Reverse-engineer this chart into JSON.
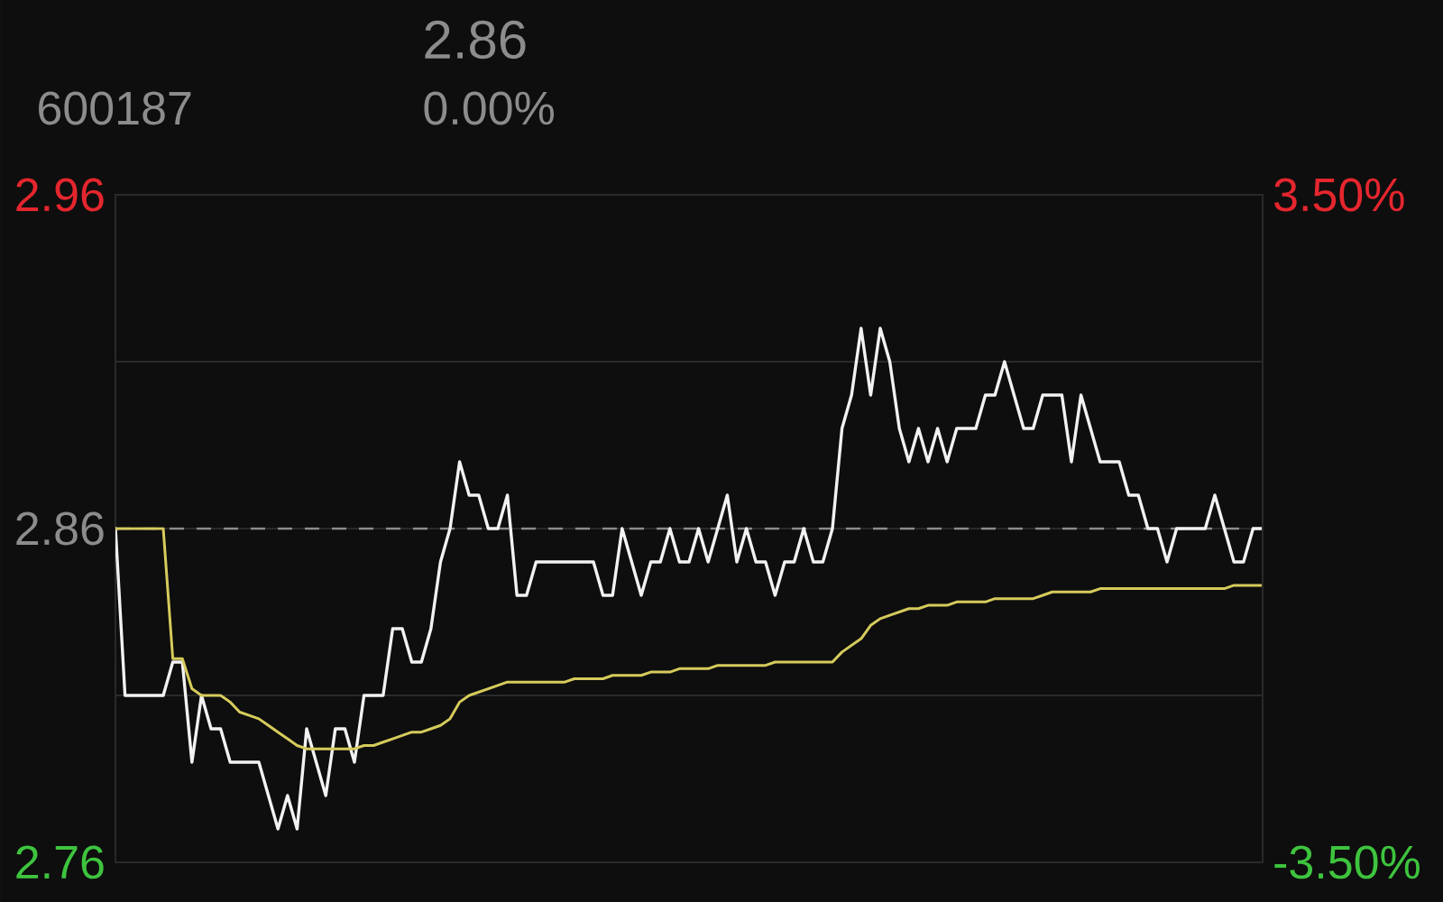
{
  "chart_data": {
    "type": "line",
    "annotations": [
      "2.86",
      "600187",
      "0.00%"
    ],
    "categories": [
      null,
      null,
      null,
      null,
      null,
      null,
      null,
      null,
      null,
      null,
      null,
      null,
      null,
      null,
      null,
      null,
      null,
      null,
      null,
      null,
      null,
      null,
      null,
      null,
      null,
      null,
      null,
      null,
      null,
      null,
      null,
      null,
      null,
      null,
      null,
      null,
      null,
      null,
      null,
      null,
      null,
      null,
      null,
      null,
      null,
      null,
      null,
      null,
      null,
      null,
      null,
      null,
      null,
      null,
      null,
      null,
      null,
      null,
      null,
      null,
      null,
      null,
      null,
      null,
      null,
      null,
      null,
      null,
      null,
      null,
      null,
      null,
      null,
      null,
      null,
      null,
      null,
      null,
      null,
      null,
      null,
      null,
      null,
      null,
      null,
      null,
      null,
      null,
      null,
      null,
      null,
      null,
      null,
      null,
      null,
      null,
      null,
      null,
      null,
      null,
      null,
      null,
      null,
      null,
      null,
      null,
      null,
      null,
      null,
      null,
      null,
      null,
      null,
      null,
      null,
      null,
      null,
      null,
      null,
      null,
      null
    ],
    "series": [
      {
        "color": "#f2f2f2",
        "values": [
          2.86,
          2.81,
          2.81,
          2.81,
          2.81,
          2.81,
          2.82,
          2.82,
          2.79,
          2.81,
          2.8,
          2.8,
          2.79,
          2.79,
          2.79,
          2.79,
          2.78,
          2.77,
          2.78,
          2.77,
          2.8,
          2.79,
          2.78,
          2.8,
          2.8,
          2.79,
          2.81,
          2.81,
          2.81,
          2.83,
          2.83,
          2.82,
          2.82,
          2.83,
          2.85,
          2.86,
          2.88,
          2.87,
          2.87,
          2.86,
          2.86,
          2.87,
          2.84,
          2.84,
          2.85,
          2.85,
          2.85,
          2.85,
          2.85,
          2.85,
          2.85,
          2.84,
          2.84,
          2.86,
          2.85,
          2.84,
          2.85,
          2.85,
          2.86,
          2.85,
          2.85,
          2.86,
          2.85,
          2.86,
          2.87,
          2.85,
          2.86,
          2.85,
          2.85,
          2.84,
          2.85,
          2.85,
          2.86,
          2.85,
          2.85,
          2.86,
          2.89,
          2.9,
          2.92,
          2.9,
          2.92,
          2.91,
          2.89,
          2.88,
          2.89,
          2.88,
          2.89,
          2.88,
          2.89,
          2.89,
          2.89,
          2.9,
          2.9,
          2.91,
          2.9,
          2.89,
          2.89,
          2.9,
          2.9,
          2.9,
          2.88,
          2.9,
          2.89,
          2.88,
          2.88,
          2.88,
          2.87,
          2.87,
          2.86,
          2.86,
          2.85,
          2.86,
          2.86,
          2.86,
          2.86,
          2.87,
          2.86,
          2.85,
          2.85,
          2.86,
          2.86
        ]
      },
      {
        "color": "#d6cb5c",
        "values": [
          2.86,
          2.86,
          2.86,
          2.86,
          2.86,
          2.86,
          2.821,
          2.821,
          2.812,
          2.81,
          2.81,
          2.81,
          2.808,
          2.805,
          2.804,
          2.803,
          2.801,
          2.799,
          2.797,
          2.795,
          2.794,
          2.794,
          2.794,
          2.794,
          2.794,
          2.794,
          2.795,
          2.795,
          2.796,
          2.797,
          2.798,
          2.799,
          2.799,
          2.8,
          2.801,
          2.803,
          2.808,
          2.81,
          2.811,
          2.812,
          2.813,
          2.814,
          2.814,
          2.814,
          2.814,
          2.814,
          2.814,
          2.814,
          2.815,
          2.815,
          2.815,
          2.815,
          2.816,
          2.816,
          2.816,
          2.816,
          2.817,
          2.817,
          2.817,
          2.818,
          2.818,
          2.818,
          2.818,
          2.819,
          2.819,
          2.819,
          2.819,
          2.819,
          2.819,
          2.82,
          2.82,
          2.82,
          2.82,
          2.82,
          2.82,
          2.82,
          2.823,
          2.825,
          2.827,
          2.831,
          2.833,
          2.834,
          2.835,
          2.836,
          2.836,
          2.837,
          2.837,
          2.837,
          2.838,
          2.838,
          2.838,
          2.838,
          2.839,
          2.839,
          2.839,
          2.839,
          2.839,
          2.84,
          2.841,
          2.841,
          2.841,
          2.841,
          2.841,
          2.842,
          2.842,
          2.842,
          2.842,
          2.842,
          2.842,
          2.842,
          2.842,
          2.842,
          2.842,
          2.842,
          2.842,
          2.842,
          2.842,
          2.843,
          2.843,
          2.843,
          2.843
        ]
      }
    ],
    "ylim": [
      2.76,
      2.96
    ],
    "yticks": [
      2.76,
      {
        "value": 2.81,
        "label": null
      },
      2.86,
      {
        "value": 2.91,
        "label": null
      },
      2.96
    ],
    "y2lim": [
      -3.5,
      3.5
    ],
    "y2ticks": [
      {
        "value": -3.5,
        "label": "-3.50%"
      },
      {
        "value": 3.5,
        "label": "3.50%"
      }
    ],
    "ref_lines": [
      {
        "axis": "y",
        "value": 2.86,
        "color": "#8c8c8c",
        "line_style": "dashed"
      }
    ],
    "grid": "y",
    "tick_labels": "y"
  }
}
